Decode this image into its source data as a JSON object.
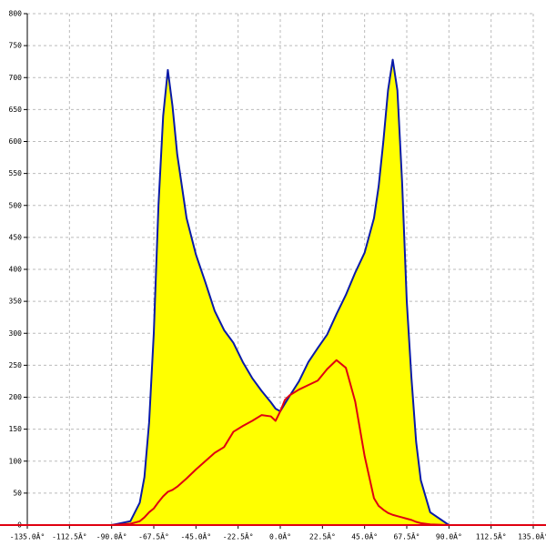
{
  "chart_data": {
    "type": "area",
    "x": [
      -90,
      -80,
      -75,
      -72.5,
      -70,
      -67.5,
      -65,
      -62.5,
      -60,
      -57.5,
      -55,
      -50,
      -45,
      -40,
      -35,
      -30,
      -25,
      -20,
      -15,
      -10,
      -5,
      -2.5,
      0,
      2.5,
      5,
      10,
      15,
      20,
      25,
      30,
      35,
      40,
      45,
      50,
      52.5,
      55,
      57.5,
      60,
      62.5,
      65,
      67.5,
      70,
      72.5,
      75,
      80,
      90
    ],
    "series": [
      {
        "color": "#0a1aa8",
        "fill": "#ffff00",
        "values": [
          0,
          6,
          35,
          75,
          160,
          300,
          500,
          640,
          712,
          655,
          580,
          480,
          423,
          380,
          335,
          305,
          285,
          255,
          230,
          210,
          192,
          182,
          178,
          190,
          202,
          225,
          255,
          277,
          298,
          330,
          360,
          395,
          426,
          480,
          530,
          600,
          680,
          728,
          680,
          537,
          350,
          230,
          130,
          70,
          20,
          0
        ]
      },
      {
        "color": "#e00010",
        "fill": null,
        "values": [
          0,
          2,
          6,
          12,
          20,
          26,
          36,
          45,
          52,
          55,
          60,
          73,
          87,
          100,
          113,
          122,
          146,
          155,
          163,
          172,
          170,
          163,
          178,
          196,
          203,
          212,
          219,
          226,
          244,
          258,
          246,
          193,
          108,
          42,
          30,
          24,
          19,
          16,
          14,
          12,
          10,
          8,
          5,
          3,
          1,
          0
        ]
      }
    ],
    "xlim": [
      -135,
      135
    ],
    "xticks": [
      {
        "value": -135,
        "label": "-135.0Â°"
      },
      {
        "value": -112.5,
        "label": "-112.5Â°"
      },
      {
        "value": -90,
        "label": "-90.0Â°"
      },
      {
        "value": -67.5,
        "label": "-67.5Â°"
      },
      {
        "value": -45,
        "label": "-45.0Â°"
      },
      {
        "value": -22.5,
        "label": "-22.5Â°"
      },
      {
        "value": 0,
        "label": "0.0Â°"
      },
      {
        "value": 22.5,
        "label": "22.5Â°"
      },
      {
        "value": 45,
        "label": "45.0Â°"
      },
      {
        "value": 67.5,
        "label": "67.5Â°"
      },
      {
        "value": 90,
        "label": "90.0Â°"
      },
      {
        "value": 112.5,
        "label": "112.5Â°"
      },
      {
        "value": 135,
        "label": "135.0Â°"
      }
    ],
    "ylim": [
      0,
      800
    ],
    "yticks": [
      0,
      50,
      100,
      150,
      200,
      250,
      300,
      350,
      400,
      450,
      500,
      550,
      600,
      650,
      700,
      750,
      800
    ],
    "grid": true
  }
}
